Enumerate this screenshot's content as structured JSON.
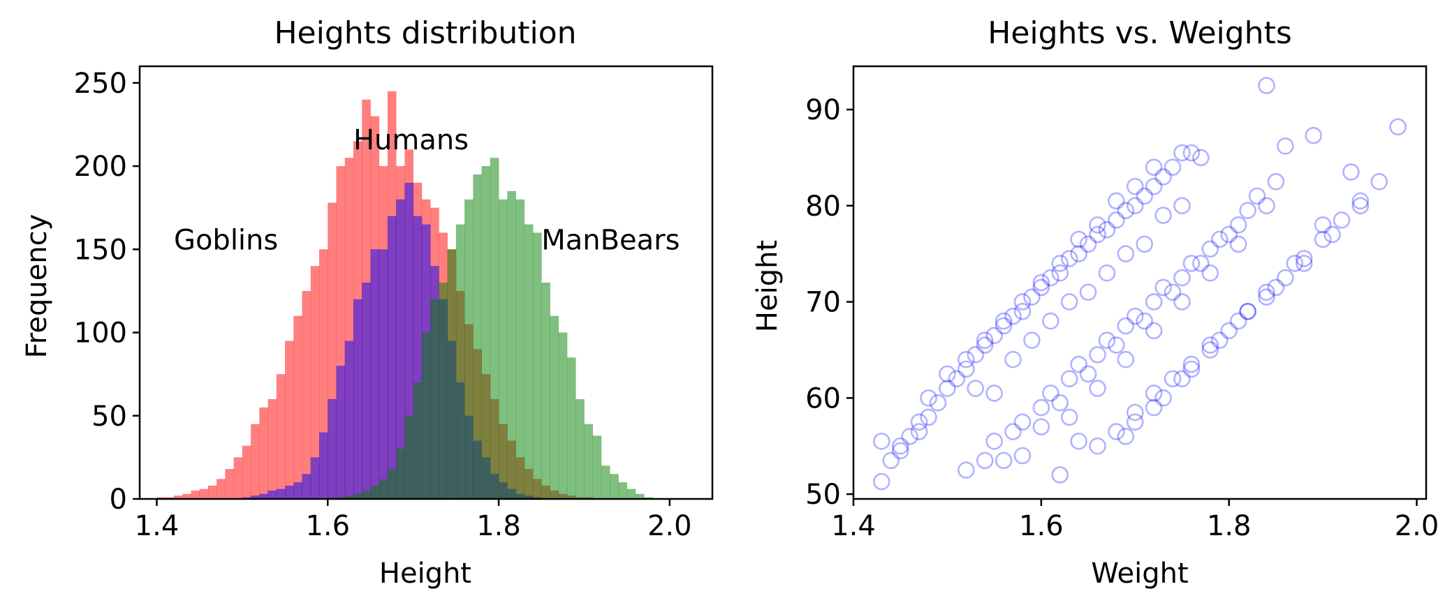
{
  "chart_data": [
    {
      "type": "histogram",
      "title": "Heights distribution",
      "xlabel": "Height",
      "ylabel": "Frequency",
      "xlim": [
        1.38,
        2.05
      ],
      "ylim": [
        0,
        260
      ],
      "xticks": [
        1.4,
        1.6,
        1.8,
        2.0
      ],
      "xtick_labels": [
        "1.4",
        "1.6",
        "1.8",
        "2.0"
      ],
      "yticks": [
        0,
        50,
        100,
        150,
        200,
        250
      ],
      "ytick_labels": [
        "0",
        "50",
        "100",
        "150",
        "200",
        "250"
      ],
      "grid": false,
      "bin_width": 0.01,
      "annotations": [
        {
          "text": "Goblins",
          "x": 1.42,
          "y": 150
        },
        {
          "text": "Humans",
          "x": 1.63,
          "y": 210
        },
        {
          "text": "ManBears",
          "x": 1.85,
          "y": 150
        }
      ],
      "series": [
        {
          "color": "#ff0000",
          "opacity": 0.5,
          "bin_start": 1.4,
          "values": [
            1,
            1,
            2,
            3,
            5,
            6,
            8,
            12,
            18,
            25,
            32,
            45,
            55,
            60,
            75,
            95,
            110,
            125,
            140,
            150,
            178,
            200,
            205,
            215,
            240,
            230,
            200,
            245,
            200,
            210,
            190,
            180,
            175,
            160,
            150,
            125,
            105,
            90,
            75,
            60,
            45,
            35,
            25,
            18,
            12,
            8,
            5,
            3,
            2,
            1,
            1
          ]
        },
        {
          "color": "#0000ff",
          "opacity": 0.5,
          "bin_start": 1.5,
          "values": [
            1,
            2,
            3,
            5,
            6,
            8,
            10,
            15,
            25,
            40,
            60,
            80,
            95,
            120,
            130,
            150,
            150,
            170,
            180,
            190,
            170,
            165,
            140,
            120,
            95,
            70,
            50,
            35,
            25,
            15,
            10,
            6,
            3,
            2,
            1
          ]
        },
        {
          "color": "#008000",
          "opacity": 0.5,
          "bin_start": 1.6,
          "values": [
            1,
            1,
            2,
            3,
            5,
            8,
            12,
            18,
            30,
            50,
            70,
            100,
            120,
            130,
            150,
            165,
            180,
            195,
            200,
            205,
            180,
            185,
            180,
            165,
            160,
            130,
            110,
            100,
            85,
            60,
            45,
            38,
            20,
            15,
            10,
            6,
            3,
            1
          ]
        }
      ]
    },
    {
      "type": "scatter",
      "title": "Heights vs. Weights",
      "xlabel": "Weight",
      "ylabel": "Height",
      "xlim": [
        1.4,
        2.01
      ],
      "ylim": [
        49.5,
        94.5
      ],
      "xticks": [
        1.4,
        1.6,
        1.8,
        2.0
      ],
      "xtick_labels": [
        "1.4",
        "1.6",
        "1.8",
        "2.0"
      ],
      "yticks": [
        50,
        60,
        70,
        80,
        90
      ],
      "ytick_labels": [
        "50",
        "60",
        "70",
        "80",
        "90"
      ],
      "grid": false,
      "marker": "hollow-circle",
      "color": "#0000ff",
      "opacity": 0.3,
      "series": [
        {
          "x": [
            1.43,
            1.44,
            1.45,
            1.46,
            1.47,
            1.48,
            1.49,
            1.5,
            1.51,
            1.52,
            1.53,
            1.54,
            1.55,
            1.56,
            1.57,
            1.58,
            1.59,
            1.6,
            1.61,
            1.62,
            1.63,
            1.64,
            1.65,
            1.66,
            1.67,
            1.68,
            1.69,
            1.7,
            1.71,
            1.72,
            1.73,
            1.74,
            1.75,
            1.76,
            1.77,
            1.48,
            1.5,
            1.52,
            1.54,
            1.56,
            1.58,
            1.6,
            1.62,
            1.64,
            1.66,
            1.68,
            1.7,
            1.72,
            1.53,
            1.57,
            1.61,
            1.65,
            1.69,
            1.73,
            1.47,
            1.43,
            1.45,
            1.55,
            1.59,
            1.63,
            1.67,
            1.71,
            1.75,
            1.62
          ],
          "y": [
            51.3,
            53.5,
            55.0,
            56.0,
            57.5,
            58.0,
            59.5,
            61.0,
            62.0,
            63.0,
            64.5,
            65.5,
            66.5,
            67.5,
            68.5,
            69.0,
            70.5,
            71.5,
            72.5,
            73.0,
            74.5,
            75.0,
            76.0,
            77.0,
            77.5,
            78.5,
            79.5,
            80.0,
            81.0,
            82.0,
            83.0,
            84.0,
            85.5,
            85.5,
            85.0,
            60.0,
            62.5,
            64.0,
            66.0,
            68.0,
            70.0,
            72.0,
            74.0,
            76.5,
            78.0,
            80.5,
            82.0,
            84.0,
            61.0,
            64.0,
            68.0,
            71.0,
            75.0,
            79.0,
            56.5,
            55.5,
            54.5,
            60.5,
            66.0,
            70.0,
            73.0,
            76.0,
            80.0,
            52.0
          ]
        },
        {
          "x": [
            1.52,
            1.54,
            1.55,
            1.57,
            1.58,
            1.6,
            1.61,
            1.63,
            1.64,
            1.66,
            1.67,
            1.69,
            1.7,
            1.72,
            1.73,
            1.75,
            1.76,
            1.78,
            1.79,
            1.81,
            1.82,
            1.83,
            1.85,
            1.6,
            1.62,
            1.65,
            1.68,
            1.71,
            1.74,
            1.77,
            1.8,
            1.63,
            1.66,
            1.69,
            1.72,
            1.75,
            1.78,
            1.81,
            1.84,
            1.64,
            1.58,
            1.56
          ],
          "y": [
            52.5,
            53.5,
            55.5,
            56.5,
            57.5,
            59.0,
            60.5,
            62.0,
            63.5,
            64.5,
            66.0,
            67.5,
            68.5,
            70.0,
            71.5,
            72.5,
            74.0,
            75.5,
            76.5,
            78.0,
            79.5,
            81.0,
            82.5,
            57.0,
            59.5,
            62.5,
            65.5,
            68.0,
            71.0,
            74.0,
            77.0,
            58.0,
            61.0,
            64.0,
            67.0,
            70.0,
            73.0,
            76.0,
            80.0,
            55.5,
            54.0,
            53.5
          ]
        },
        {
          "x": [
            1.66,
            1.68,
            1.7,
            1.72,
            1.74,
            1.76,
            1.78,
            1.8,
            1.82,
            1.84,
            1.86,
            1.88,
            1.9,
            1.92,
            1.94,
            1.96,
            1.98,
            1.7,
            1.73,
            1.76,
            1.79,
            1.82,
            1.85,
            1.88,
            1.91,
            1.94,
            1.72,
            1.75,
            1.78,
            1.81,
            1.84,
            1.87,
            1.9,
            1.93,
            1.84,
            1.89,
            1.69,
            1.86
          ],
          "y": [
            55.0,
            56.5,
            58.5,
            60.5,
            62.0,
            63.5,
            65.5,
            67.0,
            69.0,
            70.5,
            72.5,
            74.5,
            76.5,
            78.5,
            80.5,
            82.5,
            88.2,
            57.5,
            60.0,
            63.0,
            66.0,
            69.0,
            71.5,
            74.0,
            77.0,
            80.0,
            59.0,
            62.0,
            65.0,
            68.0,
            71.0,
            74.0,
            78.0,
            83.5,
            92.5,
            87.3,
            56.0,
            86.2
          ]
        }
      ]
    }
  ]
}
